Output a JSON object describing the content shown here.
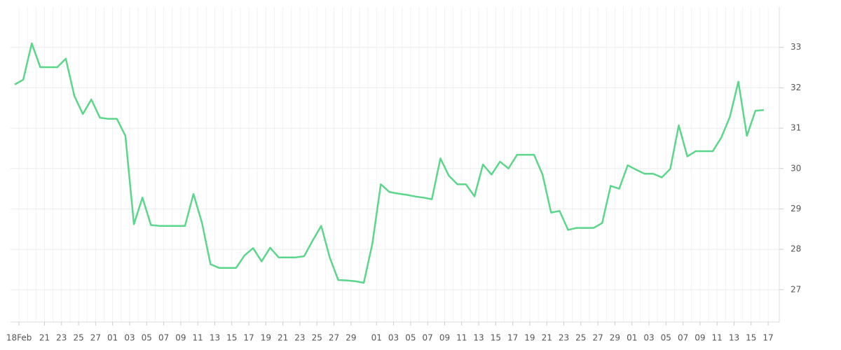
{
  "chart_data": {
    "type": "line",
    "x": [
      0,
      1,
      2,
      3,
      4,
      5,
      6,
      7,
      8,
      9,
      10,
      11,
      12,
      13,
      14,
      15,
      16,
      17,
      18,
      19,
      20,
      21,
      22,
      23,
      24,
      25,
      26,
      27,
      28,
      29,
      30,
      31,
      32,
      33,
      34,
      35,
      36,
      37,
      38,
      39,
      40,
      41,
      42,
      43,
      44,
      45,
      46,
      47,
      48,
      49,
      50,
      51,
      52,
      53,
      54,
      55,
      56,
      57,
      58,
      59,
      60,
      61,
      62,
      63,
      64,
      65,
      66,
      67,
      68,
      69,
      70,
      71,
      72,
      73,
      74,
      75,
      76,
      77,
      78,
      79,
      80,
      81,
      82,
      83,
      84,
      85,
      86,
      87,
      88
    ],
    "series": [
      {
        "color": "#5cd68a",
        "values": [
          32.08,
          32.2,
          33.1,
          32.51,
          32.51,
          32.51,
          32.72,
          31.8,
          31.35,
          31.71,
          31.26,
          31.23,
          31.23,
          30.81,
          28.62,
          29.28,
          28.6,
          28.58,
          28.58,
          28.58,
          28.58,
          29.37,
          28.65,
          27.63,
          27.54,
          27.54,
          27.54,
          27.85,
          28.03,
          27.7,
          28.04,
          27.8,
          27.8,
          27.8,
          27.83,
          28.22,
          28.58,
          27.8,
          27.24,
          27.23,
          27.21,
          27.17,
          28.13,
          29.61,
          29.42,
          29.38,
          29.35,
          29.31,
          29.28,
          29.24,
          30.25,
          29.82,
          29.61,
          29.61,
          29.31,
          30.1,
          29.85,
          30.17,
          30.0,
          30.34,
          30.34,
          30.34,
          29.85,
          28.91,
          28.95,
          28.48,
          28.53,
          28.53,
          28.53,
          28.65,
          29.57,
          29.5,
          30.08,
          29.97,
          29.87,
          29.87,
          29.78,
          29.99,
          31.07,
          30.3,
          30.43,
          30.43,
          30.43,
          30.77,
          31.28,
          32.15,
          30.81,
          31.43,
          31.45
        ]
      }
    ],
    "xlim": [
      0,
      88
    ],
    "xticks": [
      {
        "value": 0,
        "label": "18Feb"
      },
      {
        "value": 3,
        "label": "21"
      },
      {
        "value": 5,
        "label": "23"
      },
      {
        "value": 7,
        "label": "25"
      },
      {
        "value": 9,
        "label": "27"
      },
      {
        "value": 11,
        "label": "01"
      },
      {
        "value": 13,
        "label": "03"
      },
      {
        "value": 15,
        "label": "05"
      },
      {
        "value": 17,
        "label": "07"
      },
      {
        "value": 19,
        "label": "09"
      },
      {
        "value": 21,
        "label": "11"
      },
      {
        "value": 23,
        "label": "13"
      },
      {
        "value": 25,
        "label": "15"
      },
      {
        "value": 27,
        "label": "17"
      },
      {
        "value": 29,
        "label": "19"
      },
      {
        "value": 31,
        "label": "21"
      },
      {
        "value": 33,
        "label": "23"
      },
      {
        "value": 35,
        "label": "25"
      },
      {
        "value": 37,
        "label": "27"
      },
      {
        "value": 39,
        "label": "29"
      },
      {
        "value": 42,
        "label": "01"
      },
      {
        "value": 44,
        "label": "03"
      },
      {
        "value": 46,
        "label": "05"
      },
      {
        "value": 48,
        "label": "07"
      },
      {
        "value": 50,
        "label": "09"
      },
      {
        "value": 52,
        "label": "11"
      },
      {
        "value": 54,
        "label": "13"
      },
      {
        "value": 56,
        "label": "15"
      },
      {
        "value": 58,
        "label": "17"
      },
      {
        "value": 60,
        "label": "19"
      },
      {
        "value": 62,
        "label": "21"
      },
      {
        "value": 64,
        "label": "23"
      },
      {
        "value": 66,
        "label": "25"
      },
      {
        "value": 68,
        "label": "27"
      },
      {
        "value": 70,
        "label": "29"
      },
      {
        "value": 72,
        "label": "01"
      },
      {
        "value": 74,
        "label": "03"
      },
      {
        "value": 76,
        "label": "05"
      },
      {
        "value": 78,
        "label": "07"
      },
      {
        "value": 80,
        "label": "09"
      },
      {
        "value": 82,
        "label": "11"
      },
      {
        "value": 84,
        "label": "13"
      },
      {
        "value": 86,
        "label": "15"
      },
      {
        "value": 88,
        "label": "17"
      }
    ],
    "ylim": [
      26.2,
      34
    ],
    "yticks": [
      27,
      28,
      29,
      30,
      31,
      32,
      33
    ],
    "grid": true
  }
}
